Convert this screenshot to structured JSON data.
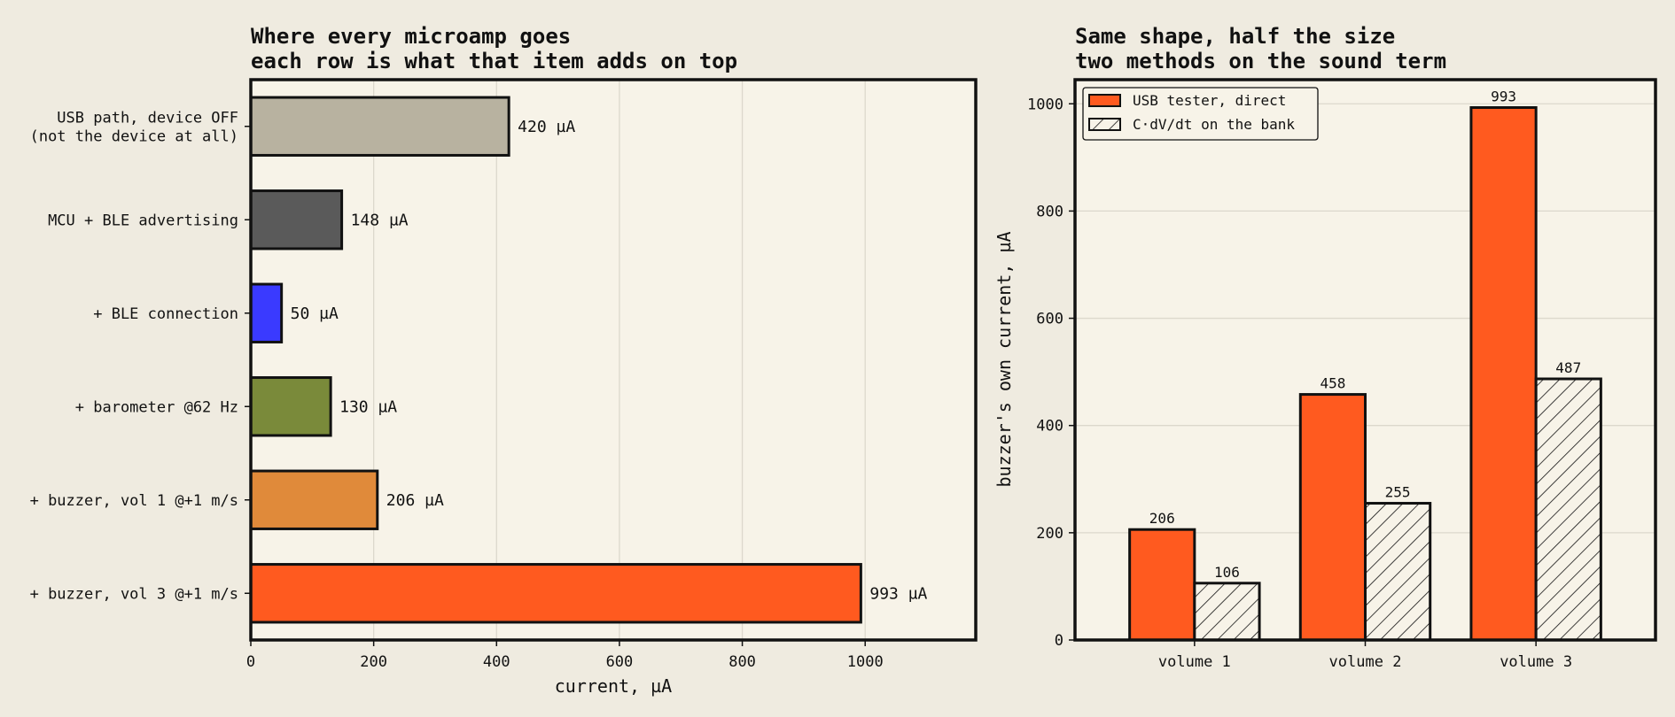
{
  "chart_data": [
    {
      "type": "bar",
      "orientation": "horizontal",
      "title_lines": [
        "Where every microamp goes",
        "each row is what that item adds on top"
      ],
      "categories": [
        [
          "USB path, device OFF",
          "(not the device at all)"
        ],
        [
          "MCU + BLE advertising"
        ],
        [
          "+ BLE connection"
        ],
        [
          "+ barometer @62 Hz"
        ],
        [
          "+ buzzer, vol 1 @+1 m/s"
        ],
        [
          "+ buzzer, vol 3 @+1 m/s"
        ]
      ],
      "values": [
        420,
        148,
        50,
        130,
        206,
        993
      ],
      "value_labels": [
        "420 µA",
        "148 µA",
        "50 µA",
        "130 µA",
        "206 µA",
        "993 µA"
      ],
      "colors": [
        "#b8b2a0",
        "#5a5a5a",
        "#3a3aff",
        "#7a8a3a",
        "#e08a3a",
        "#ff5a1f"
      ],
      "xlabel": "current, µA",
      "xlim": [
        0,
        1180
      ],
      "xticks": [
        0,
        200,
        400,
        600,
        800,
        1000
      ],
      "grid": true
    },
    {
      "type": "bar",
      "orientation": "vertical",
      "title_lines": [
        "Same shape, half the size",
        "two methods on the sound term"
      ],
      "categories": [
        "volume 1",
        "volume 2",
        "volume 3"
      ],
      "series": [
        {
          "name": "USB tester, direct",
          "values": [
            206,
            458,
            993
          ],
          "color": "#ff5a1f",
          "hatch": false
        },
        {
          "name": "C·dV/dt on the bank",
          "values": [
            106,
            255,
            487
          ],
          "color": "#f7f3e8",
          "hatch": true
        }
      ],
      "ylabel": "buzzer's own current, µA",
      "ylim": [
        0,
        1045
      ],
      "yticks": [
        0,
        200,
        400,
        600,
        800,
        1000
      ],
      "legend_position": "top-left",
      "grid": true
    }
  ]
}
